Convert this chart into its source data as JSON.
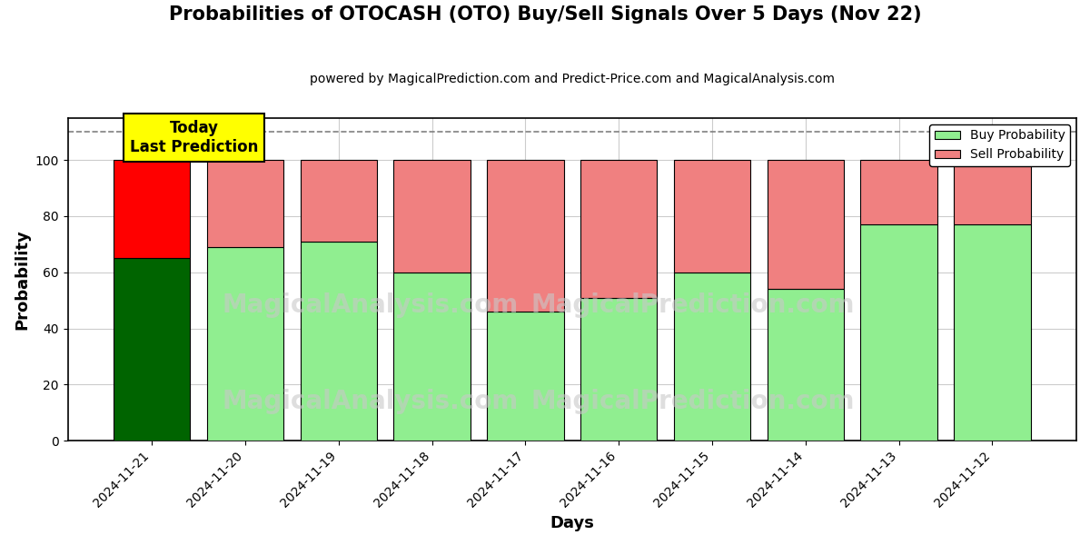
{
  "title": "Probabilities of OTOCASH (OTO) Buy/Sell Signals Over 5 Days (Nov 22)",
  "subtitle": "powered by MagicalPrediction.com and Predict-Price.com and MagicalAnalysis.com",
  "xlabel": "Days",
  "ylabel": "Probability",
  "categories": [
    "2024-11-21",
    "2024-11-20",
    "2024-11-19",
    "2024-11-18",
    "2024-11-17",
    "2024-11-16",
    "2024-11-15",
    "2024-11-14",
    "2024-11-13",
    "2024-11-12"
  ],
  "buy_values": [
    65,
    69,
    71,
    60,
    46,
    51,
    60,
    54,
    77,
    77
  ],
  "sell_values": [
    35,
    31,
    29,
    40,
    54,
    49,
    40,
    46,
    23,
    23
  ],
  "today_buy_color": "#006400",
  "today_sell_color": "#FF0000",
  "buy_color": "#90EE90",
  "sell_color": "#F08080",
  "bar_edge_color": "#000000",
  "today_annotation_bg": "#FFFF00",
  "today_annotation_text": "Today\nLast Prediction",
  "dashed_line_y": 110,
  "ylim": [
    0,
    115
  ],
  "yticks": [
    0,
    20,
    40,
    60,
    80,
    100
  ],
  "legend_buy_label": "Buy Probability",
  "legend_sell_label": "Sell Probability",
  "background_color": "#ffffff",
  "grid_color": "#cccccc",
  "bar_width": 0.82,
  "watermark1": "MagicalAnalysis.com",
  "watermark2": "MagicalPrediction.com",
  "watermark_color": "#c8c8c8",
  "watermark_fontsize": 20
}
